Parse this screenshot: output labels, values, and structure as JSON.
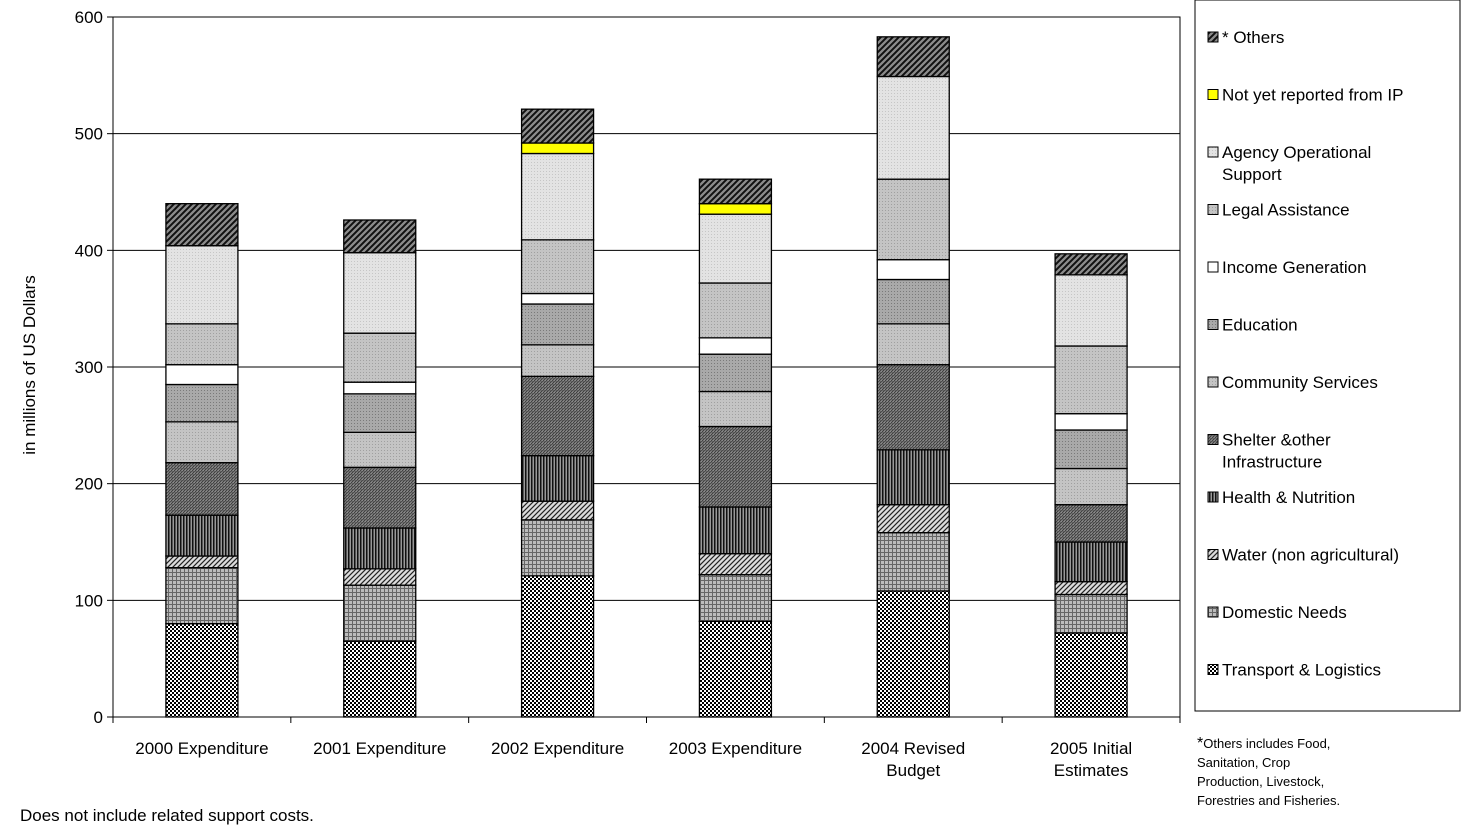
{
  "chart_data": {
    "type": "bar",
    "stacked": true,
    "ylabel": "in millions of US Dollars",
    "ylim": [
      0,
      600
    ],
    "yticks": [
      0,
      100,
      200,
      300,
      400,
      500,
      600
    ],
    "grid": true,
    "legend_position": "right",
    "categories": [
      [
        "2000 Expenditure"
      ],
      [
        "2001 Expenditure"
      ],
      [
        "2002 Expenditure"
      ],
      [
        "2003 Expenditure"
      ],
      [
        "2004 Revised",
        "Budget"
      ],
      [
        "2005  Initial",
        "Estimates"
      ]
    ],
    "series": [
      {
        "name": "Transport & Logistics",
        "legend_lines": [
          "Transport & Logistics"
        ],
        "pattern": "grid-dense",
        "values": [
          80,
          65,
          121,
          82,
          108,
          72
        ]
      },
      {
        "name": "Domestic Needs",
        "legend_lines": [
          "Domestic Needs"
        ],
        "pattern": "grid-fine",
        "values": [
          48,
          48,
          48,
          40,
          50,
          33
        ]
      },
      {
        "name": "Water (non agricultural)",
        "legend_lines": [
          "Water (non agricultural)"
        ],
        "pattern": "diagonal",
        "values": [
          10,
          14,
          16,
          18,
          24,
          11
        ]
      },
      {
        "name": "Health & Nutrition",
        "legend_lines": [
          "Health & Nutrition"
        ],
        "pattern": "vertical",
        "values": [
          35,
          35,
          39,
          40,
          47,
          34
        ]
      },
      {
        "name": "Shelter &other Infrastructure",
        "legend_lines": [
          "Shelter &other",
          "Infrastructure"
        ],
        "pattern": "hatch-fine",
        "values": [
          45,
          52,
          68,
          69,
          73,
          32
        ]
      },
      {
        "name": "Community Services",
        "legend_lines": [
          "Community Services"
        ],
        "pattern": "light-gray",
        "values": [
          35,
          30,
          27,
          30,
          35,
          31
        ]
      },
      {
        "name": "Education",
        "legend_lines": [
          "Education"
        ],
        "pattern": "mid-gray",
        "values": [
          32,
          33,
          35,
          32,
          38,
          33
        ]
      },
      {
        "name": "Income Generation",
        "legend_lines": [
          "Income Generation"
        ],
        "pattern": "white",
        "values": [
          17,
          10,
          9,
          14,
          17,
          14
        ]
      },
      {
        "name": "Legal Assistance",
        "legend_lines": [
          "Legal Assistance"
        ],
        "pattern": "light-gray",
        "values": [
          35,
          42,
          46,
          47,
          69,
          58
        ]
      },
      {
        "name": "Agency Operational Support",
        "legend_lines": [
          "Agency Operational",
          "Support"
        ],
        "pattern": "lightest-gray",
        "values": [
          67,
          69,
          74,
          59,
          88,
          61
        ]
      },
      {
        "name": "Not yet reported from IP",
        "legend_lines": [
          "Not yet reported from IP"
        ],
        "pattern": "yellow",
        "values": [
          0,
          0,
          9,
          9,
          0,
          0
        ]
      },
      {
        "name": "* Others",
        "legend_lines": [
          "* Others"
        ],
        "pattern": "diag-dark",
        "values": [
          36,
          28,
          29,
          21,
          34,
          18
        ]
      }
    ]
  },
  "note": {
    "star": "*",
    "lines": [
      "Others includes Food,",
      "Sanitation, Crop",
      "Production, Livestock,",
      "Forestries and Fisheries."
    ]
  },
  "footnote": "Does not include related support costs."
}
